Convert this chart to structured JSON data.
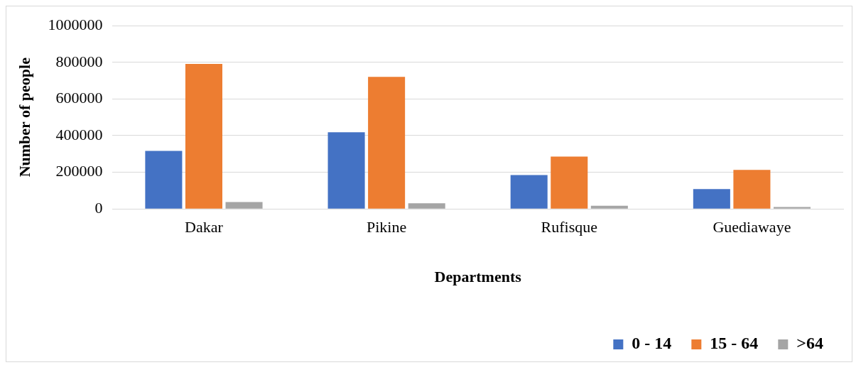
{
  "chart_data": {
    "type": "bar",
    "xlabel": "Departments",
    "ylabel": "Number of people",
    "categories": [
      "Dakar",
      "Pikine",
      "Rufisque",
      "Guediawaye"
    ],
    "series": [
      {
        "name": "0 - 14",
        "color": "#4472c4",
        "values": [
          317000,
          418000,
          185000,
          108000
        ]
      },
      {
        "name": "15 - 64",
        "color": "#ed7d31",
        "values": [
          791000,
          721000,
          286000,
          213000
        ]
      },
      {
        "name": ">64",
        "color": "#a5a5a5",
        "values": [
          38000,
          31000,
          17000,
          10000
        ]
      }
    ],
    "ylim": [
      0,
      1000000
    ],
    "yticks": [
      0,
      200000,
      400000,
      600000,
      800000,
      1000000
    ],
    "grid": "y",
    "legend": "bottom right"
  }
}
